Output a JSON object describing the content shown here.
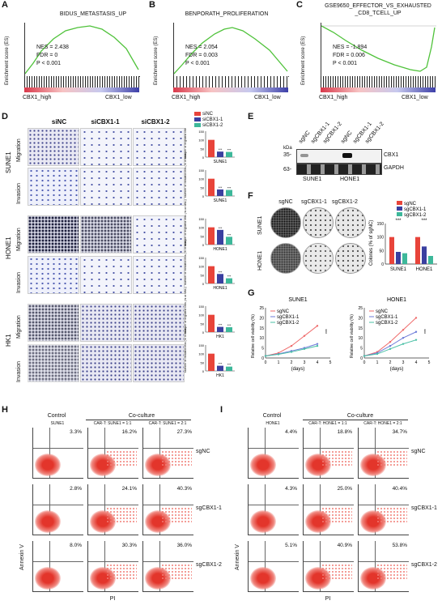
{
  "panels": {
    "A": {
      "label": "A",
      "title": "BIDUS_METASTASIS_UP",
      "stats": [
        "NES = 2.438",
        "FDR = 0",
        "P < 0.001"
      ]
    },
    "B": {
      "label": "B",
      "title": "BENPORATH_PROLIFERATION",
      "stats": [
        "NES = 2.054",
        "FDR = 0.003",
        "P < 0.001"
      ]
    },
    "C": {
      "label": "C",
      "title": "GSE9650_EFFECTOR_VS_EXHAUSTED _CD8_TCELL_UP",
      "stats": [
        "NES = -1.894",
        "FDR = 0.006",
        "P < 0.001"
      ]
    },
    "D": {
      "label": "D"
    },
    "E": {
      "label": "E"
    },
    "F": {
      "label": "F"
    },
    "G": {
      "label": "G"
    },
    "H": {
      "label": "H"
    },
    "I": {
      "label": "I"
    }
  },
  "gsea": {
    "ylabel": "Enrichment score (ES)",
    "high": "CBX1_high",
    "low": "CBX1_low",
    "yticks_ab": [
      "0.6",
      "0.5",
      "0.4",
      "0.3",
      "0.2",
      "0.1",
      "0.0"
    ],
    "yticks_c": [
      "0.0",
      "-0.1",
      "-0.2",
      "-0.3",
      "-0.4",
      "-0.5"
    ]
  },
  "d": {
    "cols": [
      "siNC",
      "siCBX1-1",
      "siCBX1-2"
    ],
    "cells": [
      "SUNE1",
      "HONE1",
      "HK1"
    ],
    "rows": [
      "Migration",
      "Invasion"
    ],
    "legend": [
      "siNC",
      "siCBX1-1",
      "siCBX1-2"
    ],
    "ylab_mig": "Number of migrated cells (% of siNC)",
    "ylab_inv": "Number of invaded cells (% of siNC)",
    "yticks": [
      "150",
      "100",
      "50",
      "0"
    ],
    "sig": "***"
  },
  "e": {
    "lanes": [
      "sgNC",
      "sgCBX1-1",
      "sgCBX1-2",
      "sgNC",
      "sgCBX1-1",
      "sgCBX1-2"
    ],
    "kda": "kDa",
    "m1": "35-",
    "m2": "63-",
    "proteins": [
      "CBX1",
      "GAPDH"
    ],
    "cells": [
      "SUNE1",
      "HONE1"
    ]
  },
  "f": {
    "cols": [
      "sgNC",
      "sgCBX1-1",
      "sgCBX1-2"
    ],
    "rows": [
      "SUNE1",
      "HONE1"
    ],
    "ylabel": "Colones (% of sgNC)",
    "legend": [
      "sgNC",
      "sgCBX1-1",
      "sgCBX1-2"
    ],
    "yticks": [
      "150",
      "100",
      "50",
      "0"
    ],
    "sig": "***"
  },
  "g": {
    "titles": [
      "SUNE1",
      "HONE1"
    ],
    "ylabel": "Relative cell viability (%)",
    "xlabel": "(days)",
    "xticks": [
      "0",
      "1",
      "2",
      "3",
      "4",
      "5"
    ],
    "yticks": [
      "25",
      "20",
      "15",
      "10",
      "5",
      "0"
    ],
    "legend": [
      "sgNC",
      "sgCBX1-1",
      "sgCBX1-2"
    ],
    "sig": "***"
  },
  "h": {
    "control": "Control",
    "coculture": "Co-culture",
    "sub": [
      "SUNE1",
      "CAR-T: SUNE1 = 1:1",
      "CAR-T: SUNE1 = 2:1"
    ],
    "rows": [
      "sgNC",
      "sgCBX1-1",
      "sgCBX1-2"
    ],
    "pct": [
      [
        "3.3%",
        "16.2%",
        "27.3%"
      ],
      [
        "2.8%",
        "24.1%",
        "40.3%"
      ],
      [
        "8.0%",
        "30.3%",
        "36.0%"
      ]
    ],
    "xlab": "PI",
    "ylab": "Annexin V"
  },
  "i": {
    "control": "Control",
    "coculture": "Co-culture",
    "sub": [
      "HONE1",
      "CAR-T: HONE1 = 1:1",
      "CAR-T: HONE1 = 2:1"
    ],
    "rows": [
      "sgNC",
      "sgCBX1-1",
      "sgCBX1-2"
    ],
    "pct": [
      [
        "4.4%",
        "18.8%",
        "34.7%"
      ],
      [
        "4.3%",
        "25.0%",
        "40.4%"
      ],
      [
        "5.1%",
        "40.9%",
        "53.8%"
      ]
    ],
    "xlab": "PI",
    "ylab": "Annexin V"
  },
  "chart_data": [
    {
      "type": "bar",
      "title": "SUNE1 Migration",
      "categories": [
        "siNC",
        "siCBX1-1",
        "siCBX1-2"
      ],
      "values": [
        100,
        32,
        30
      ],
      "ylim": [
        0,
        150
      ]
    },
    {
      "type": "bar",
      "title": "SUNE1 Invasion",
      "categories": [
        "siNC",
        "siCBX1-1",
        "siCBX1-2"
      ],
      "values": [
        100,
        38,
        35
      ],
      "ylim": [
        0,
        150
      ]
    },
    {
      "type": "bar",
      "title": "HONE1 Migration",
      "categories": [
        "siNC",
        "siCBX1-1",
        "siCBX1-2"
      ],
      "values": [
        100,
        85,
        45
      ],
      "ylim": [
        0,
        150
      ]
    },
    {
      "type": "bar",
      "title": "HONE1 Invasion",
      "categories": [
        "siNC",
        "siCBX1-1",
        "siCBX1-2"
      ],
      "values": [
        100,
        55,
        30
      ],
      "ylim": [
        0,
        150
      ]
    },
    {
      "type": "bar",
      "title": "HK1 Migration",
      "categories": [
        "siNC",
        "siCBX1-1",
        "siCBX1-2"
      ],
      "values": [
        100,
        30,
        28
      ],
      "ylim": [
        0,
        150
      ]
    },
    {
      "type": "bar",
      "title": "HK1 Invasion",
      "categories": [
        "siNC",
        "siCBX1-1",
        "siCBX1-2"
      ],
      "values": [
        100,
        30,
        25
      ],
      "ylim": [
        0,
        150
      ]
    },
    {
      "type": "bar",
      "title": "Colonies",
      "categories": [
        "SUNE1",
        "HONE1"
      ],
      "series": [
        {
          "name": "sgNC",
          "values": [
            100,
            100
          ]
        },
        {
          "name": "sgCBX1-1",
          "values": [
            45,
            65
          ]
        },
        {
          "name": "sgCBX1-2",
          "values": [
            40,
            30
          ]
        }
      ],
      "ylim": [
        0,
        150
      ]
    },
    {
      "type": "line",
      "title": "SUNE1",
      "x": [
        0,
        1,
        2,
        3,
        4
      ],
      "series": [
        {
          "name": "sgNC",
          "values": [
            1,
            2.5,
            6,
            11,
            16
          ]
        },
        {
          "name": "sgCBX1-1",
          "values": [
            1,
            2,
            3.5,
            5,
            7
          ]
        },
        {
          "name": "sgCBX1-2",
          "values": [
            1,
            1.8,
            3,
            4.5,
            6
          ]
        }
      ],
      "ylim": [
        0,
        25
      ]
    },
    {
      "type": "line",
      "title": "HONE1",
      "x": [
        0,
        1,
        2,
        3,
        4
      ],
      "series": [
        {
          "name": "sgNC",
          "values": [
            1,
            3,
            8,
            14,
            20
          ]
        },
        {
          "name": "sgCBX1-1",
          "values": [
            1,
            2.5,
            6,
            10,
            13
          ]
        },
        {
          "name": "sgCBX1-2",
          "values": [
            1,
            2,
            4.5,
            7,
            9
          ]
        }
      ],
      "ylim": [
        0,
        25
      ]
    }
  ],
  "colors": {
    "nc": "#e8443a",
    "k1": "#3a3fa0",
    "k2": "#3db89a",
    "line_nc": "#ef6a6a",
    "line_k1": "#6d7bd8",
    "line_k2": "#4ac0a6",
    "gsea": "#4fc23a"
  }
}
